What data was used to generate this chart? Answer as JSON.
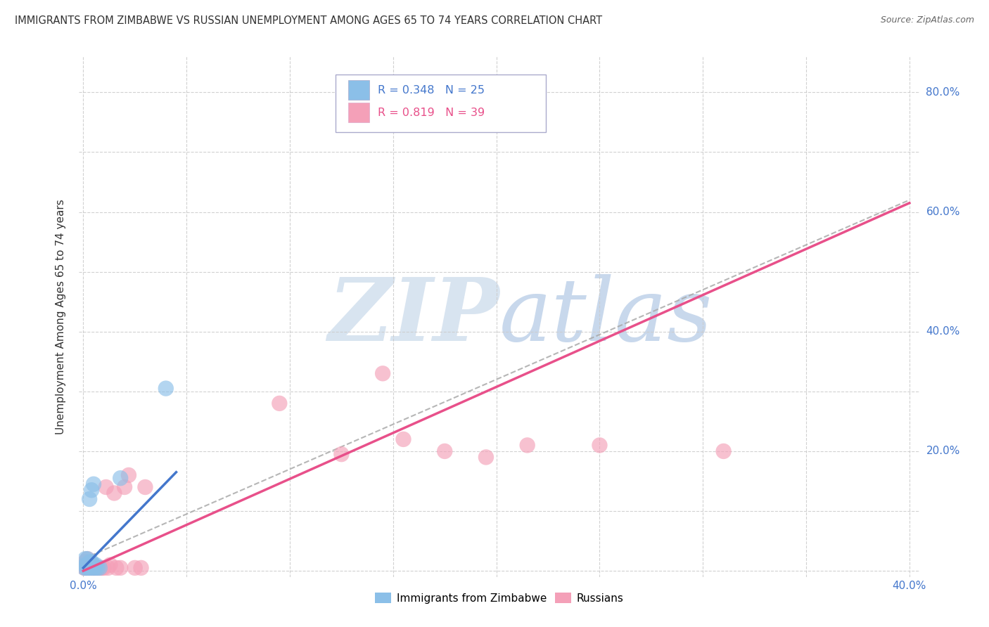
{
  "title": "IMMIGRANTS FROM ZIMBABWE VS RUSSIAN UNEMPLOYMENT AMONG AGES 65 TO 74 YEARS CORRELATION CHART",
  "source": "Source: ZipAtlas.com",
  "ylabel": "Unemployment Among Ages 65 to 74 years",
  "xlim": [
    -0.002,
    0.405
  ],
  "ylim": [
    -0.01,
    0.86
  ],
  "xtick_pos": [
    0.0,
    0.05,
    0.1,
    0.15,
    0.2,
    0.25,
    0.3,
    0.35,
    0.4
  ],
  "xtick_labels": [
    "0.0%",
    "",
    "",
    "",
    "",
    "",
    "",
    "",
    "40.0%"
  ],
  "ytick_pos": [
    0.0,
    0.1,
    0.2,
    0.3,
    0.4,
    0.5,
    0.6,
    0.7,
    0.8
  ],
  "ytick_labels": [
    "",
    "",
    "20.0%",
    "",
    "40.0%",
    "",
    "60.0%",
    "",
    "80.0%"
  ],
  "blue_color": "#8bbfe8",
  "pink_color": "#f4a0b8",
  "blue_line_color": "#4477cc",
  "pink_line_color": "#e8508a",
  "legend_label_blue": "Immigrants from Zimbabwe",
  "legend_label_pink": "Russians",
  "blue_scatter_x": [
    0.0005,
    0.001,
    0.001,
    0.0015,
    0.002,
    0.002,
    0.002,
    0.0025,
    0.003,
    0.003,
    0.003,
    0.004,
    0.004,
    0.004,
    0.005,
    0.005,
    0.006,
    0.006,
    0.007,
    0.008,
    0.003,
    0.004,
    0.005,
    0.018,
    0.04
  ],
  "blue_scatter_y": [
    0.005,
    0.01,
    0.02,
    0.005,
    0.008,
    0.01,
    0.02,
    0.005,
    0.005,
    0.01,
    0.015,
    0.005,
    0.01,
    0.015,
    0.005,
    0.01,
    0.005,
    0.01,
    0.005,
    0.005,
    0.12,
    0.135,
    0.145,
    0.155,
    0.305
  ],
  "pink_scatter_x": [
    0.0005,
    0.001,
    0.001,
    0.001,
    0.0015,
    0.002,
    0.002,
    0.002,
    0.003,
    0.003,
    0.004,
    0.004,
    0.005,
    0.005,
    0.006,
    0.007,
    0.008,
    0.009,
    0.01,
    0.011,
    0.012,
    0.013,
    0.015,
    0.016,
    0.018,
    0.02,
    0.022,
    0.025,
    0.028,
    0.03,
    0.095,
    0.125,
    0.145,
    0.155,
    0.175,
    0.195,
    0.215,
    0.25,
    0.31
  ],
  "pink_scatter_y": [
    0.005,
    0.01,
    0.005,
    0.015,
    0.005,
    0.005,
    0.01,
    0.02,
    0.005,
    0.01,
    0.005,
    0.01,
    0.005,
    0.005,
    0.005,
    0.005,
    0.005,
    0.005,
    0.005,
    0.14,
    0.005,
    0.01,
    0.13,
    0.005,
    0.005,
    0.14,
    0.16,
    0.005,
    0.005,
    0.14,
    0.28,
    0.195,
    0.33,
    0.22,
    0.2,
    0.19,
    0.21,
    0.21,
    0.2
  ],
  "blue_line_x": [
    0.0,
    0.045
  ],
  "blue_line_y": [
    0.005,
    0.165
  ],
  "pink_line_x": [
    0.0,
    0.4
  ],
  "pink_line_y": [
    0.0,
    0.615
  ],
  "dash_line_x": [
    0.0,
    0.4
  ],
  "dash_line_y": [
    0.02,
    0.62
  ],
  "background_color": "#ffffff",
  "grid_color": "#cccccc",
  "watermark_color": "#d8e4f0"
}
